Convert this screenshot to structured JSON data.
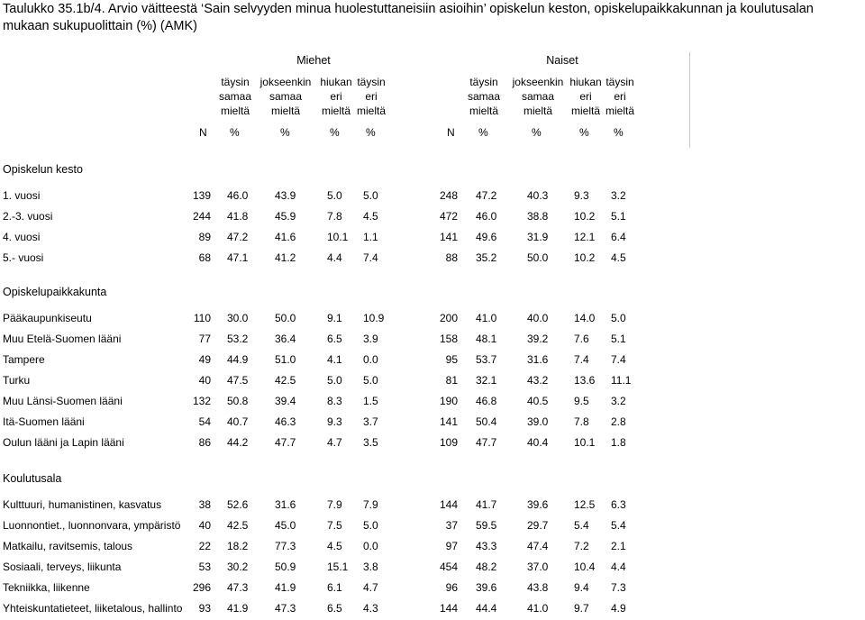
{
  "title": "Taulukko 35.1b/4. Arvio väitteestä ‘Sain selvyyden minua huolestuttaneisiin asioihin’ opiskelun keston, opiskelupaikkakunnan ja koulutusalan mukaan sukupuolittain (%) (AMK)",
  "groups": {
    "men": "Miehet",
    "women": "Naiset"
  },
  "col_headers": [
    [
      "täysin",
      "samaa",
      "mieltä"
    ],
    [
      "jokseenkin",
      "samaa",
      "mieltä"
    ],
    [
      "hiukan",
      "eri",
      "mieltä"
    ],
    [
      "täysin",
      "eri",
      "mieltä"
    ]
  ],
  "symbols": {
    "n": "N",
    "pct": "%"
  },
  "sections": [
    {
      "title": "Opiskelun kesto",
      "rows": [
        {
          "label": "1. vuosi",
          "m": [
            "139",
            "46.0",
            "43.9",
            "5.0",
            "5.0"
          ],
          "w": [
            "248",
            "47.2",
            "40.3",
            "9.3",
            "3.2"
          ]
        },
        {
          "label": "2.-3. vuosi",
          "m": [
            "244",
            "41.8",
            "45.9",
            "7.8",
            "4.5"
          ],
          "w": [
            "472",
            "46.0",
            "38.8",
            "10.2",
            "5.1"
          ]
        },
        {
          "label": "4. vuosi",
          "m": [
            "89",
            "47.2",
            "41.6",
            "10.1",
            "1.1"
          ],
          "w": [
            "141",
            "49.6",
            "31.9",
            "12.1",
            "6.4"
          ]
        },
        {
          "label": "5.- vuosi",
          "m": [
            "68",
            "47.1",
            "41.2",
            "4.4",
            "7.4"
          ],
          "w": [
            "88",
            "35.2",
            "50.0",
            "10.2",
            "4.5"
          ]
        }
      ]
    },
    {
      "title": "Opiskelupaikkakunta",
      "rows": [
        {
          "label": "Pääkaupunkiseutu",
          "m": [
            "110",
            "30.0",
            "50.0",
            "9.1",
            "10.9"
          ],
          "w": [
            "200",
            "41.0",
            "40.0",
            "14.0",
            "5.0"
          ]
        },
        {
          "label": "Muu Etelä-Suomen lääni",
          "m": [
            "77",
            "53.2",
            "36.4",
            "6.5",
            "3.9"
          ],
          "w": [
            "158",
            "48.1",
            "39.2",
            "7.6",
            "5.1"
          ]
        },
        {
          "label": "Tampere",
          "m": [
            "49",
            "44.9",
            "51.0",
            "4.1",
            "0.0"
          ],
          "w": [
            "95",
            "53.7",
            "31.6",
            "7.4",
            "7.4"
          ]
        },
        {
          "label": "Turku",
          "m": [
            "40",
            "47.5",
            "42.5",
            "5.0",
            "5.0"
          ],
          "w": [
            "81",
            "32.1",
            "43.2",
            "13.6",
            "11.1"
          ]
        },
        {
          "label": "Muu Länsi-Suomen lääni",
          "m": [
            "132",
            "50.8",
            "39.4",
            "8.3",
            "1.5"
          ],
          "w": [
            "190",
            "46.8",
            "40.5",
            "9.5",
            "3.2"
          ]
        },
        {
          "label": "Itä-Suomen lääni",
          "m": [
            "54",
            "40.7",
            "46.3",
            "9.3",
            "3.7"
          ],
          "w": [
            "141",
            "50.4",
            "39.0",
            "7.8",
            "2.8"
          ]
        },
        {
          "label": "Oulun lääni ja Lapin lääni",
          "m": [
            "86",
            "44.2",
            "47.7",
            "4.7",
            "3.5"
          ],
          "w": [
            "109",
            "47.7",
            "40.4",
            "10.1",
            "1.8"
          ]
        }
      ]
    },
    {
      "title": "Koulutusala",
      "rows": [
        {
          "label": "Kulttuuri, humanistinen, kasvatus",
          "m": [
            "38",
            "52.6",
            "31.6",
            "7.9",
            "7.9"
          ],
          "w": [
            "144",
            "41.7",
            "39.6",
            "12.5",
            "6.3"
          ]
        },
        {
          "label": "Luonnontiet., luonnonvara, ympäristö",
          "m": [
            "40",
            "42.5",
            "45.0",
            "7.5",
            "5.0"
          ],
          "w": [
            "37",
            "59.5",
            "29.7",
            "5.4",
            "5.4"
          ]
        },
        {
          "label": "Matkailu, ravitsemis, talous",
          "m": [
            "22",
            "18.2",
            "77.3",
            "4.5",
            "0.0"
          ],
          "w": [
            "97",
            "43.3",
            "47.4",
            "7.2",
            "2.1"
          ]
        },
        {
          "label": "Sosiaali, terveys, liikunta",
          "m": [
            "53",
            "30.2",
            "50.9",
            "15.1",
            "3.8"
          ],
          "w": [
            "454",
            "48.2",
            "37.0",
            "10.4",
            "4.4"
          ]
        },
        {
          "label": "Tekniikka, liikenne",
          "m": [
            "296",
            "47.3",
            "41.9",
            "6.1",
            "4.7"
          ],
          "w": [
            "96",
            "39.6",
            "43.8",
            "9.4",
            "7.3"
          ]
        },
        {
          "label": "Yhteiskuntatieteet, liiketalous, hallinto",
          "m": [
            "93",
            "41.9",
            "47.3",
            "6.5",
            "4.3"
          ],
          "w": [
            "144",
            "44.4",
            "41.0",
            "9.7",
            "4.9"
          ]
        }
      ]
    }
  ]
}
